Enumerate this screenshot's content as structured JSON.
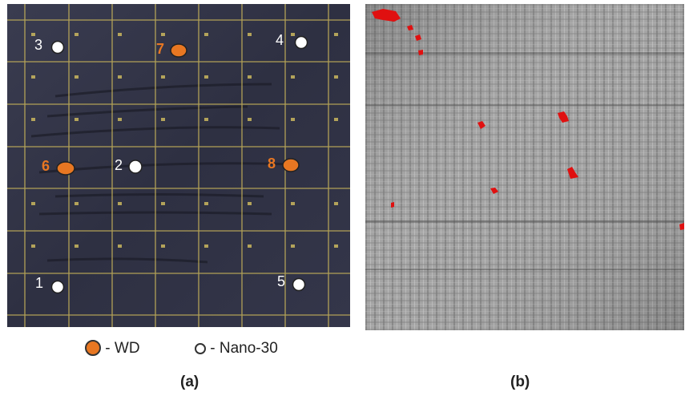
{
  "panel_a": {
    "markers": [
      {
        "num": "1",
        "type": "Nano-30"
      },
      {
        "num": "2",
        "type": "Nano-30"
      },
      {
        "num": "3",
        "type": "Nano-30"
      },
      {
        "num": "4",
        "type": "Nano-30"
      },
      {
        "num": "5",
        "type": "Nano-30"
      },
      {
        "num": "6",
        "type": "WD"
      },
      {
        "num": "7",
        "type": "WD"
      },
      {
        "num": "8",
        "type": "WD"
      }
    ]
  },
  "legend": {
    "wd_label": "- WD",
    "nano_label": "- Nano-30",
    "wd_color": "#e87722",
    "nano_color": "#ffffff"
  },
  "captions": {
    "a": "(a)",
    "b": "(b)"
  },
  "colors": {
    "plate": "#2f3142",
    "grid": "#c8b45a",
    "defect": "#e01010"
  }
}
